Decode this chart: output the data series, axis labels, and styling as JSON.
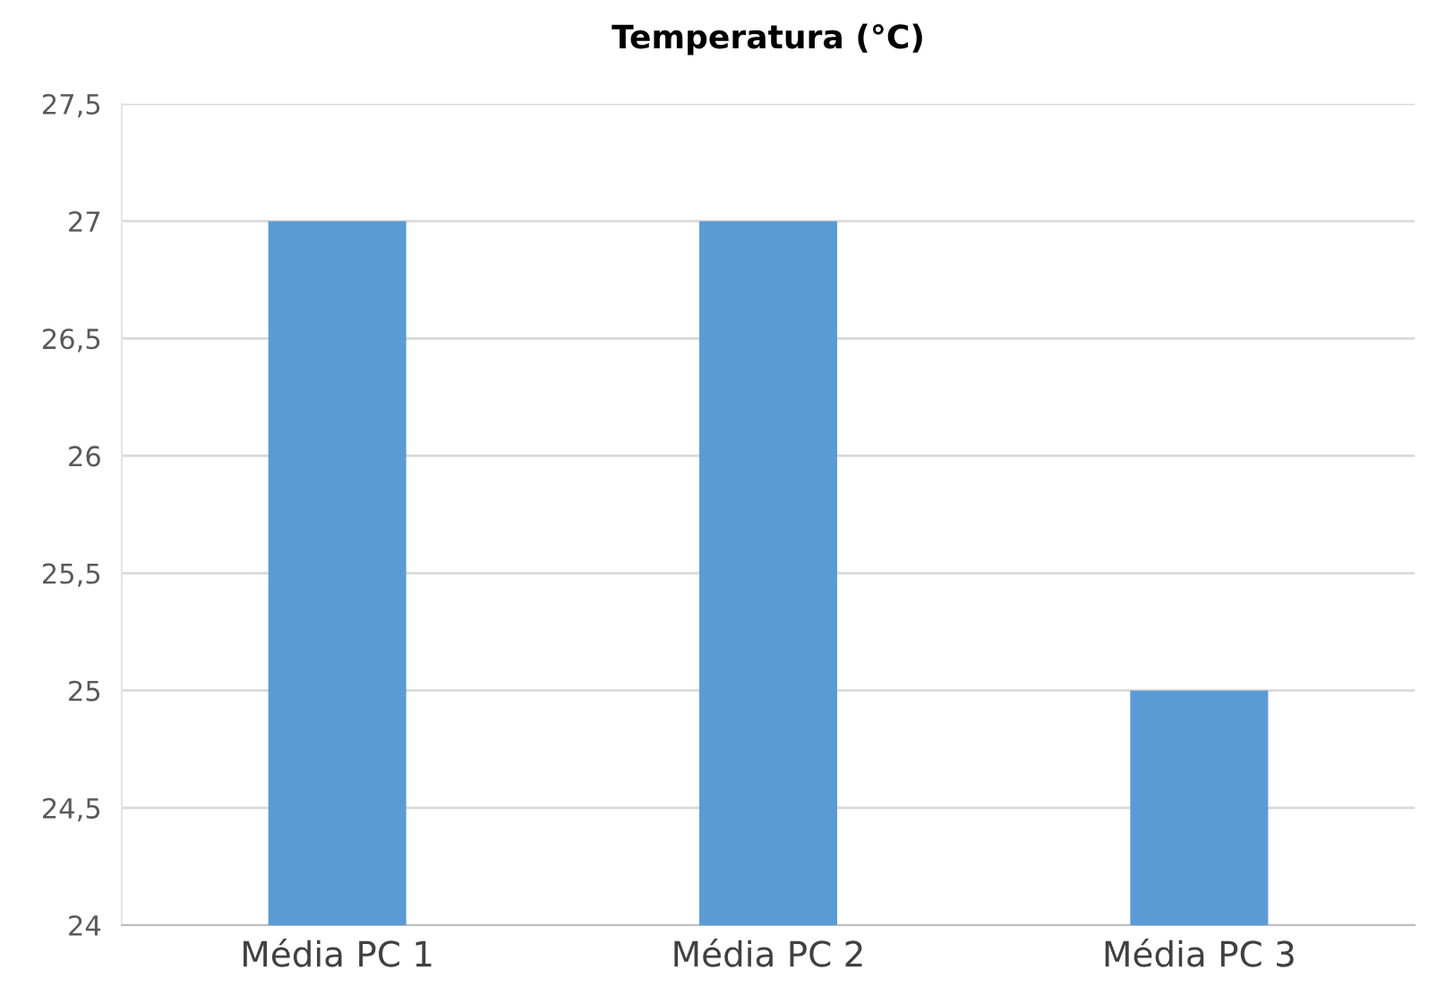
{
  "chart_data": {
    "type": "bar",
    "title": "Temperatura (°C)",
    "categories": [
      "Média PC 1",
      "Média PC 2",
      "Média PC 3"
    ],
    "values": [
      27,
      27,
      25
    ],
    "color": "#5b9bd5",
    "ylim": [
      24,
      27.5
    ],
    "yticks": [
      24,
      {
        "value": 24.5,
        "label": "24,5"
      },
      25,
      {
        "value": 25.5,
        "label": "25,5"
      },
      26,
      {
        "value": 26.5,
        "label": "26,5"
      },
      27,
      {
        "value": 27.5,
        "label": "27,5"
      }
    ],
    "grid": "y"
  }
}
